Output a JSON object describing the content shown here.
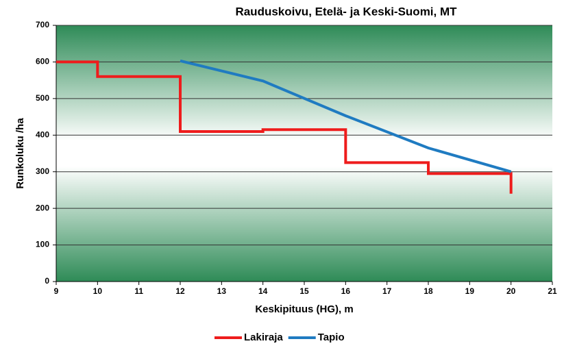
{
  "chart_data": {
    "type": "line",
    "title": "Rauduskoivu, Etelä- ja Keski-Suomi, MT",
    "xlabel": "Keskipituus (HG), m",
    "ylabel": "Runkoluku /ha",
    "xlim": [
      9,
      21
    ],
    "xticks": [
      9,
      10,
      11,
      12,
      13,
      14,
      15,
      16,
      17,
      18,
      19,
      20,
      21
    ],
    "ylim": [
      0,
      700
    ],
    "yticks": [
      0,
      100,
      200,
      300,
      400,
      500,
      600,
      700
    ],
    "grid": true,
    "legend": "bottom",
    "series": [
      {
        "name": "Lakiraja",
        "color": "#ee1c1c",
        "x": [
          9,
          10,
          10,
          12,
          12,
          14,
          14,
          16,
          16,
          18,
          18,
          20,
          20
        ],
        "values": [
          600,
          600,
          560,
          560,
          410,
          410,
          415,
          415,
          325,
          325,
          295,
          295,
          240
        ]
      },
      {
        "name": "Tapio",
        "color": "#1f7bc1",
        "x": [
          12,
          14,
          16,
          18,
          20
        ],
        "values": [
          603,
          548,
          453,
          365,
          300
        ]
      }
    ]
  }
}
